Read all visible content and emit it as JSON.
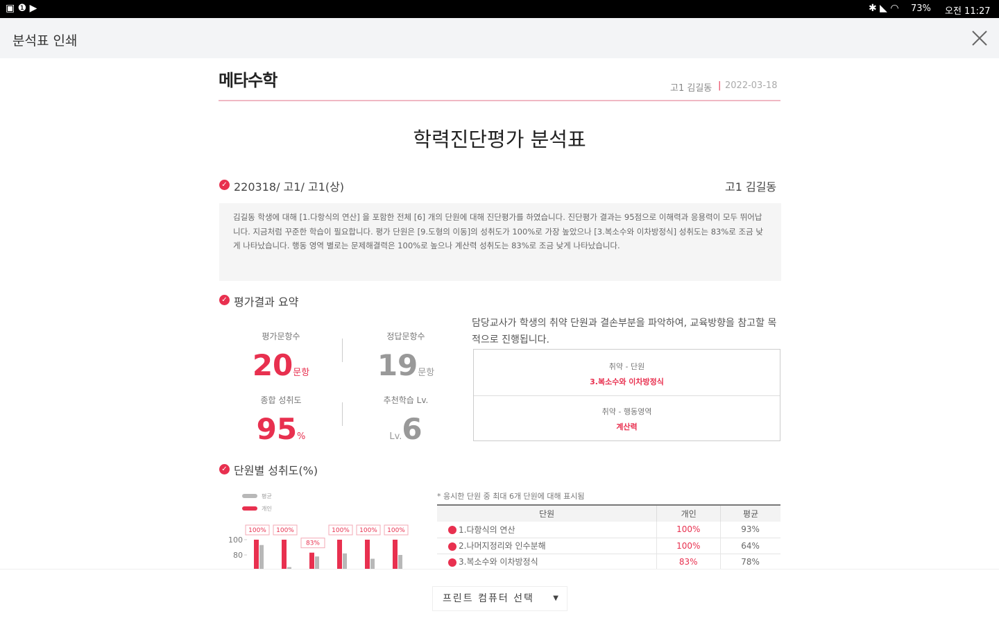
{
  "status_bar": {
    "battery": "73%",
    "time": "오전 11:27"
  },
  "header": {
    "title": "분석표 인쇄"
  },
  "report": {
    "logo": "메타수학",
    "student": "고1 김길동",
    "date": "2022-03-18",
    "title": "학력진단평가 분석표",
    "exam": "220318/ 고1/ 고1(상)",
    "exam_student": "고1 김길동",
    "comment": "김길동 학생에 대해 [1.다항식의 연산] 을 포함한 전체 [6] 개의 단원에 대해 진단평가를 하였습니다. 진단평가 결과는 95점으로 이해력과 응용력이 모두 뛰어납니다. 지금처럼 꾸준한 학습이 필요합니다. 평가 단원은 [9.도형의 이동]의 성취도가 100%로 가장 높았으나 [3.복소수와 이차방정식] 성취도는 83%로 조금 낮게 나타났습니다. 행동 영역 별로는 문제해결력은 100%로 높으나 계산력 성취도는 83%로 조금 낮게 나타났습니다.",
    "summary_title": "평가결과 요약",
    "stats": [
      {
        "label": "평가문항수",
        "value": 20,
        "unit": "문항"
      },
      {
        "label": "정답문항수",
        "value": 19,
        "unit": "문항"
      },
      {
        "label": "종합 성취도",
        "value": 95,
        "unit": "%"
      },
      {
        "label": "추천학습 Lv.",
        "prefix": "Lv.",
        "value": 6
      }
    ],
    "note": "담당교사가 학생의 취약 단원과 결손부분을 파악하여, 교육방향을 참고할 목적으로 진행됩니다.",
    "weak": [
      {
        "label": "취약 - 단원",
        "value": "3.복소수와 이차방정식"
      },
      {
        "label": "취약 - 행동영역",
        "value": "계산력"
      }
    ],
    "units_title": "단원별 성취도(%)",
    "table_note": "* 응시한 단원 중 최대 6개 단원에 대해 표시됨",
    "table": {
      "header": [
        "단원",
        "개인",
        "평균"
      ],
      "rows": [
        [
          "1.다항식의 연산",
          "100%",
          "93%"
        ],
        [
          "2.나머지정리와 인수분해",
          "100%",
          "64%"
        ],
        [
          "3.복소수와 이차방정식",
          "83%",
          "78%"
        ]
      ]
    }
  },
  "chart_data": {
    "type": "bar",
    "series": [
      {
        "name": "평균",
        "color": "#b8b8b8",
        "values": [
          93,
          64,
          78,
          82,
          75,
          80
        ]
      },
      {
        "name": "개인",
        "color": "#e8304f",
        "values": [
          100,
          100,
          83,
          100,
          100,
          100
        ],
        "value_labels": [
          "100%",
          "100%",
          "83%",
          "100%",
          "100%",
          "100%"
        ]
      }
    ],
    "ylim": [
      0,
      100
    ],
    "yticks": [
      100,
      80
    ]
  },
  "print_button": "프린트 컴퓨터 선택"
}
